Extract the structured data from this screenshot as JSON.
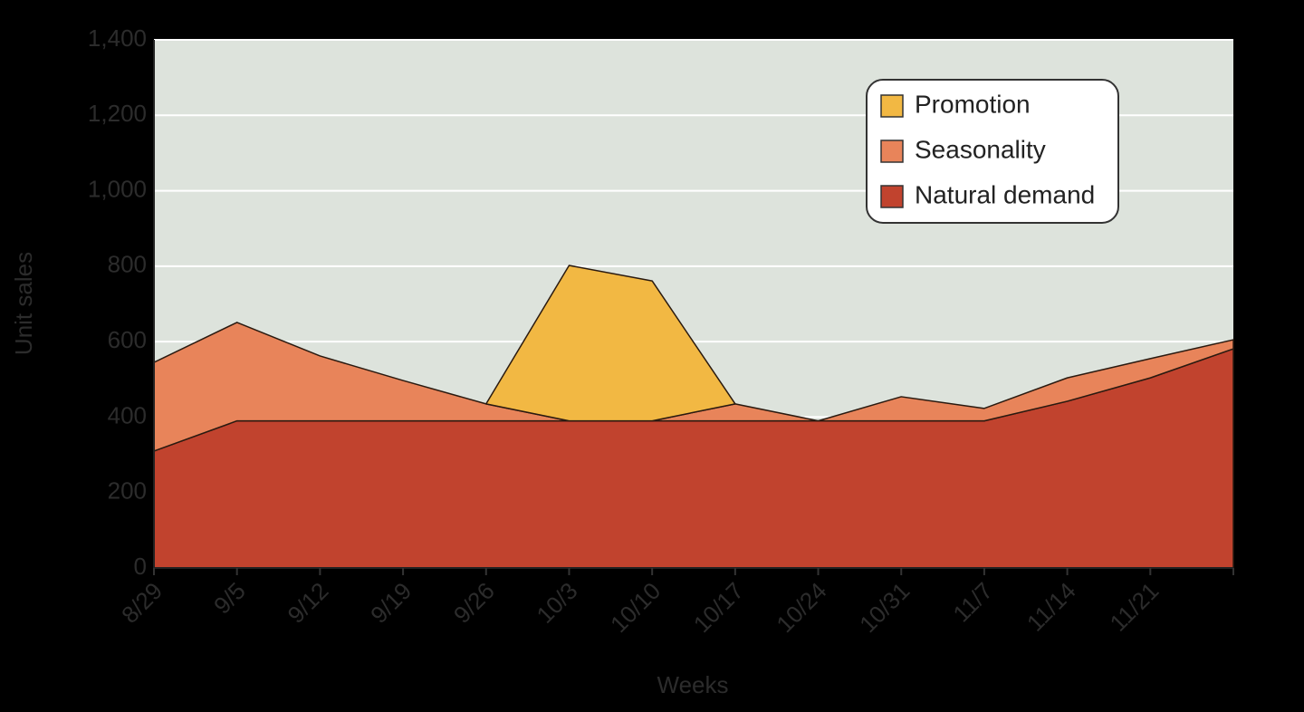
{
  "chart_data": {
    "type": "stacked_area",
    "x_label": "Weeks",
    "y_label": "Unit sales",
    "categories": [
      "8/29",
      "9/5",
      "9/12",
      "9/19",
      "9/26",
      "10/3",
      "10/10",
      "10/17",
      "10/24",
      "10/31",
      "11/7",
      "11/14",
      "11/21",
      null
    ],
    "series": [
      {
        "name": "Natural demand",
        "color": "#c1432e",
        "values": [
          310,
          390,
          390,
          390,
          390,
          390,
          390,
          390,
          390,
          390,
          390,
          442,
          504,
          581
        ]
      },
      {
        "name": "Seasonality",
        "color": "#e8845a",
        "values": [
          235,
          261,
          172,
          107,
          45,
          0,
          0,
          45,
          0,
          64,
          33,
          62,
          51,
          24
        ]
      },
      {
        "name": "Promotion",
        "color": "#f2b843",
        "values": [
          null,
          null,
          null,
          null,
          0,
          412,
          371,
          0,
          null,
          null,
          null,
          null,
          null,
          null
        ]
      }
    ],
    "ylim": [
      0,
      1400
    ],
    "yticks": [
      0,
      200,
      400,
      600,
      800,
      {
        "value": 1000,
        "label": "1,000"
      },
      {
        "value": 1200,
        "label": "1,200"
      },
      {
        "value": 1400,
        "label": "1,400"
      }
    ],
    "grid": true,
    "legend": "upper right"
  }
}
